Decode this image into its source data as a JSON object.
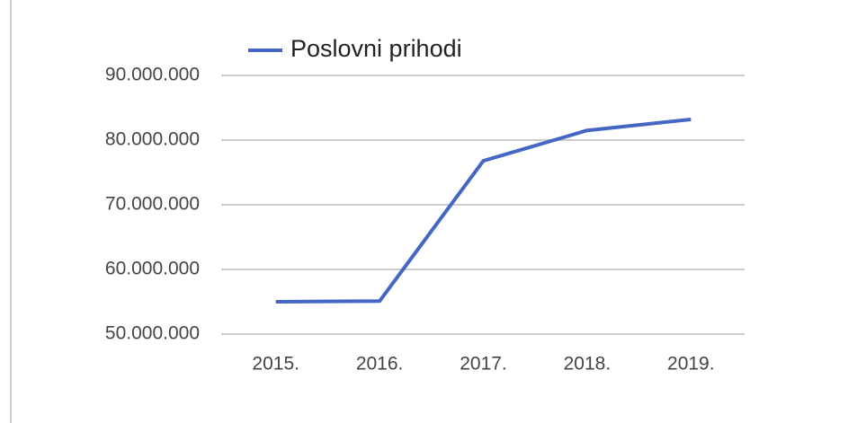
{
  "chart_data": {
    "type": "line",
    "categories": [
      "2015.",
      "2016.",
      "2017.",
      "2018.",
      "2019."
    ],
    "series": [
      {
        "name": "Poslovni prihodi",
        "color": "#4466c4",
        "values": [
          55000000,
          55100000,
          76800000,
          81500000,
          83200000
        ]
      }
    ],
    "ylim": [
      50000000,
      90000000
    ],
    "yticks": [
      {
        "value": 50000000,
        "label": "50.000.000"
      },
      {
        "value": 60000000,
        "label": "60.000.000"
      },
      {
        "value": 70000000,
        "label": "70.000.000"
      },
      {
        "value": 80000000,
        "label": "80.000.000"
      },
      {
        "value": 90000000,
        "label": "90.000.000"
      }
    ],
    "grid": true,
    "legend": "top"
  }
}
